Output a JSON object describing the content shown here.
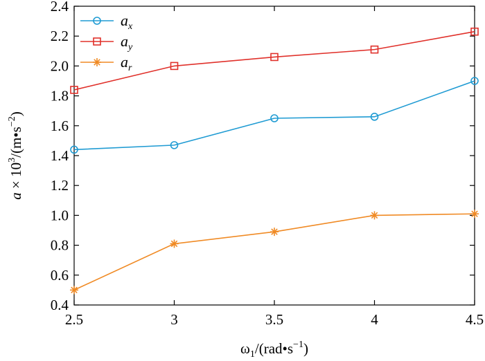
{
  "chart_data": {
    "type": "line",
    "x": [
      2.5,
      3,
      3.5,
      4,
      4.5
    ],
    "xlim": [
      2.5,
      4.5
    ],
    "ylim": [
      0.4,
      2.4
    ],
    "xticks": [
      2.5,
      3,
      3.5,
      4,
      4.5
    ],
    "xtick_labels": [
      "2.5",
      "3",
      "3.5",
      "4",
      "4.5"
    ],
    "yticks": [
      0.4,
      0.6,
      0.8,
      1.0,
      1.2,
      1.4,
      1.6,
      1.8,
      2.0,
      2.2,
      2.4
    ],
    "ytick_labels": [
      "0.4",
      "0.6",
      "0.8",
      "1.0",
      "1.2",
      "1.4",
      "1.6",
      "1.8",
      "2.0",
      "2.2",
      "2.4"
    ],
    "xlabel": {
      "main": "ω",
      "sub": "1",
      "rest": "/(rad•s",
      "sup": "−1",
      "close": ")"
    },
    "ylabel": {
      "var": "a",
      "times": " × 10",
      "sup1": "3",
      "rest": "/(m•s",
      "sup2": "−2",
      "close": ")"
    },
    "grid": false,
    "legend_position": "top-left",
    "series": [
      {
        "name": "a",
        "sub": "x",
        "color": "#1f9bd3",
        "marker": "circle",
        "values": [
          1.44,
          1.47,
          1.65,
          1.66,
          1.9
        ]
      },
      {
        "name": "a",
        "sub": "y",
        "color": "#e0302a",
        "marker": "square",
        "values": [
          1.84,
          2.0,
          2.06,
          2.11,
          2.23
        ]
      },
      {
        "name": "a",
        "sub": "r",
        "color": "#f08a24",
        "marker": "star",
        "values": [
          0.5,
          0.81,
          0.89,
          1.0,
          1.01
        ]
      }
    ]
  }
}
